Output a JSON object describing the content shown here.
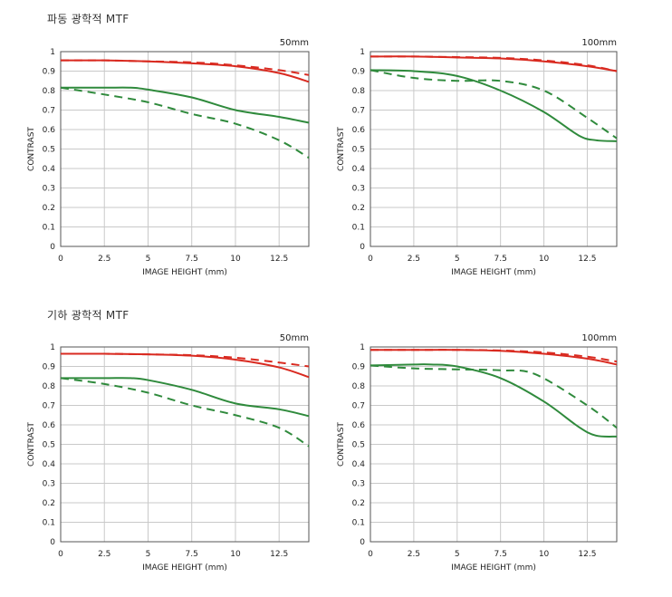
{
  "sections": [
    {
      "title": "파동 광학적 MTF"
    },
    {
      "title": "기하 광학적 MTF"
    }
  ],
  "colors": {
    "red": "#d92a20",
    "green": "#2f8a3c",
    "grid": "#c9c9c9",
    "frame": "#555555"
  },
  "chart_data": [
    {
      "type": "line",
      "section": "파동 광학적 MTF",
      "title": "50mm",
      "xlabel": "IMAGE HEIGHT (mm)",
      "ylabel": "CONTRAST",
      "xlim": [
        0,
        14.2
      ],
      "ylim": [
        0,
        1
      ],
      "xticks": [
        "0",
        "2.5",
        "5",
        "7.5",
        "10",
        "12.5"
      ],
      "yticks": [
        "0",
        "0.1",
        "0.2",
        "0.3",
        "0.4",
        "0.5",
        "0.6",
        "0.7",
        "0.8",
        "0.9",
        "1"
      ],
      "grid": true,
      "series": [
        {
          "color": "red",
          "dash": false,
          "x": [
            0,
            2.5,
            5,
            7.5,
            10,
            12.5,
            14.2
          ],
          "y": [
            0.955,
            0.955,
            0.95,
            0.94,
            0.925,
            0.89,
            0.845
          ]
        },
        {
          "color": "red",
          "dash": true,
          "x": [
            0,
            2.5,
            5,
            7.5,
            10,
            12.5,
            14.2
          ],
          "y": [
            0.955,
            0.955,
            0.95,
            0.945,
            0.93,
            0.905,
            0.88
          ]
        },
        {
          "color": "green",
          "dash": false,
          "x": [
            0,
            2.5,
            4,
            5,
            7.5,
            10,
            12.5,
            14.2
          ],
          "y": [
            0.815,
            0.815,
            0.815,
            0.805,
            0.765,
            0.7,
            0.665,
            0.635
          ]
        },
        {
          "color": "green",
          "dash": true,
          "x": [
            0,
            2.5,
            5,
            7.5,
            10,
            12.5,
            14.2
          ],
          "y": [
            0.815,
            0.78,
            0.74,
            0.68,
            0.63,
            0.545,
            0.455
          ]
        }
      ]
    },
    {
      "type": "line",
      "section": "파동 광학적 MTF",
      "title": "100mm",
      "xlabel": "IMAGE HEIGHT (mm)",
      "ylabel": "CONTRAST",
      "xlim": [
        0,
        14.2
      ],
      "ylim": [
        0,
        1
      ],
      "xticks": [
        "0",
        "2.5",
        "5",
        "7.5",
        "10",
        "12.5"
      ],
      "yticks": [
        "0",
        "0.1",
        "0.2",
        "0.3",
        "0.4",
        "0.5",
        "0.6",
        "0.7",
        "0.8",
        "0.9",
        "1"
      ],
      "grid": true,
      "series": [
        {
          "color": "red",
          "dash": false,
          "x": [
            0,
            2.5,
            5,
            7.5,
            10,
            12.5,
            14.2
          ],
          "y": [
            0.975,
            0.975,
            0.97,
            0.965,
            0.95,
            0.925,
            0.9
          ]
        },
        {
          "color": "red",
          "dash": true,
          "x": [
            0,
            2.5,
            5,
            7.5,
            10,
            12.5,
            14.2
          ],
          "y": [
            0.975,
            0.975,
            0.972,
            0.968,
            0.955,
            0.93,
            0.9
          ]
        },
        {
          "color": "green",
          "dash": false,
          "x": [
            0,
            2.5,
            5,
            7.5,
            10,
            12,
            13,
            14.2
          ],
          "y": [
            0.905,
            0.9,
            0.875,
            0.8,
            0.69,
            0.57,
            0.545,
            0.54
          ]
        },
        {
          "color": "green",
          "dash": true,
          "x": [
            0,
            2.5,
            5,
            7.5,
            10,
            12.5,
            14.2
          ],
          "y": [
            0.905,
            0.865,
            0.85,
            0.85,
            0.8,
            0.66,
            0.555
          ]
        }
      ]
    },
    {
      "type": "line",
      "section": "기하 광학적 MTF",
      "title": "50mm",
      "xlabel": "IMAGE HEIGHT (mm)",
      "ylabel": "CONTRAST",
      "xlim": [
        0,
        14.2
      ],
      "ylim": [
        0,
        1
      ],
      "xticks": [
        "0",
        "2.5",
        "5",
        "7.5",
        "10",
        "12.5"
      ],
      "yticks": [
        "0",
        "0.1",
        "0.2",
        "0.3",
        "0.4",
        "0.5",
        "0.6",
        "0.7",
        "0.8",
        "0.9",
        "1"
      ],
      "grid": true,
      "series": [
        {
          "color": "red",
          "dash": false,
          "x": [
            0,
            2.5,
            5,
            7.5,
            10,
            12.5,
            14.2
          ],
          "y": [
            0.965,
            0.965,
            0.962,
            0.955,
            0.935,
            0.895,
            0.845
          ]
        },
        {
          "color": "red",
          "dash": true,
          "x": [
            0,
            2.5,
            5,
            7.5,
            10,
            12.5,
            14.2
          ],
          "y": [
            0.965,
            0.965,
            0.962,
            0.958,
            0.945,
            0.92,
            0.9
          ]
        },
        {
          "color": "green",
          "dash": false,
          "x": [
            0,
            2.5,
            4,
            5,
            7.5,
            10,
            12.5,
            14.2
          ],
          "y": [
            0.84,
            0.84,
            0.84,
            0.83,
            0.78,
            0.71,
            0.68,
            0.645
          ]
        },
        {
          "color": "green",
          "dash": true,
          "x": [
            0,
            2.5,
            5,
            7.5,
            10,
            12.5,
            14.2
          ],
          "y": [
            0.84,
            0.81,
            0.765,
            0.7,
            0.65,
            0.585,
            0.49
          ]
        }
      ]
    },
    {
      "type": "line",
      "section": "기하 광학적 MTF",
      "title": "100mm",
      "xlabel": "IMAGE HEIGHT (mm)",
      "ylabel": "CONTRAST",
      "xlim": [
        0,
        14.2
      ],
      "ylim": [
        0,
        1
      ],
      "xticks": [
        "0",
        "2.5",
        "5",
        "7.5",
        "10",
        "12.5"
      ],
      "yticks": [
        "0",
        "0.1",
        "0.2",
        "0.3",
        "0.4",
        "0.5",
        "0.6",
        "0.7",
        "0.8",
        "0.9",
        "1"
      ],
      "grid": true,
      "series": [
        {
          "color": "red",
          "dash": false,
          "x": [
            0,
            2.5,
            5,
            7.5,
            10,
            12.5,
            14.2
          ],
          "y": [
            0.985,
            0.985,
            0.985,
            0.98,
            0.965,
            0.94,
            0.91
          ]
        },
        {
          "color": "red",
          "dash": true,
          "x": [
            0,
            2.5,
            5,
            7.5,
            10,
            12.5,
            14.2
          ],
          "y": [
            0.985,
            0.985,
            0.985,
            0.982,
            0.972,
            0.95,
            0.925
          ]
        },
        {
          "color": "green",
          "dash": false,
          "x": [
            0,
            2.5,
            3.5,
            5,
            7.5,
            10,
            12,
            13,
            14.2
          ],
          "y": [
            0.905,
            0.91,
            0.91,
            0.9,
            0.84,
            0.72,
            0.59,
            0.545,
            0.54
          ]
        },
        {
          "color": "green",
          "dash": true,
          "x": [
            0,
            2.5,
            5,
            7.5,
            9.5,
            12.5,
            14.2
          ],
          "y": [
            0.905,
            0.89,
            0.885,
            0.88,
            0.86,
            0.7,
            0.585
          ]
        }
      ]
    }
  ]
}
